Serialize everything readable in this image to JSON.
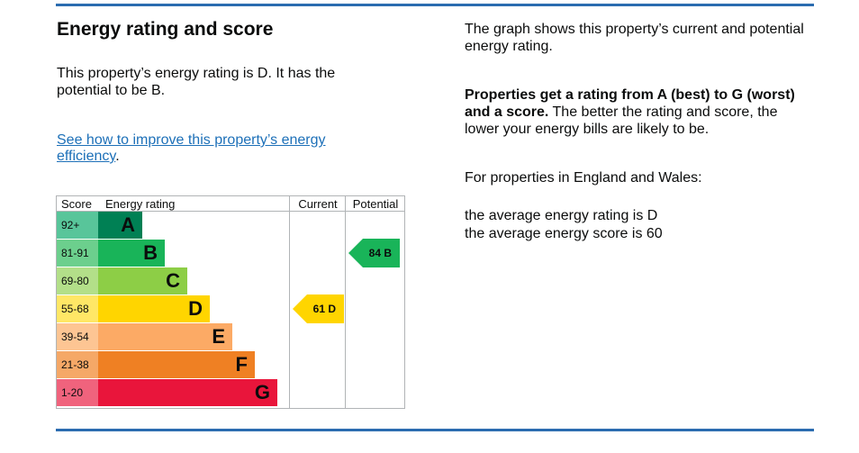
{
  "heading": "Energy rating and score",
  "summary": "This property’s energy rating is D. It has the potential to be B.",
  "improve_link": "See how to improve this property’s energy efficiency",
  "improve_link_suffix": ".",
  "chart_data": {
    "type": "table",
    "headers": {
      "score": "Score",
      "energy_rating": "Energy rating",
      "current": "Current",
      "potential": "Potential"
    },
    "bands": [
      {
        "score": "92+",
        "letter": "A",
        "color": "#008054",
        "score_bg": "#58c59a"
      },
      {
        "score": "81-91",
        "letter": "B",
        "color": "#19b459",
        "score_bg": "#6ccf8d"
      },
      {
        "score": "69-80",
        "letter": "C",
        "color": "#8dce46",
        "score_bg": "#b3df89"
      },
      {
        "score": "55-68",
        "letter": "D",
        "color": "#ffd500",
        "score_bg": "#ffe766"
      },
      {
        "score": "39-54",
        "letter": "E",
        "color": "#fcaa65",
        "score_bg": "#fdc593"
      },
      {
        "score": "21-38",
        "letter": "F",
        "color": "#ef8023",
        "score_bg": "#f5a867"
      },
      {
        "score": "1-20",
        "letter": "G",
        "color": "#e9153b",
        "score_bg": "#f0637d"
      }
    ],
    "current": {
      "label": "61 D",
      "score": 61,
      "band": "D",
      "color": "#ffd500"
    },
    "potential": {
      "label": "84 B",
      "score": 84,
      "band": "B",
      "color": "#19b459"
    }
  },
  "right": {
    "graph_intro": "The graph shows this property’s current and potential energy rating.",
    "rating_bold": "Properties get a rating from A (best) to G (worst) and a score.",
    "rating_rest": " The better the rating and score, the lower your energy bills are likely to be.",
    "region_intro": "For properties in England and Wales:",
    "average_rating": "the average energy rating is D",
    "average_score": "the average energy score is 60"
  }
}
